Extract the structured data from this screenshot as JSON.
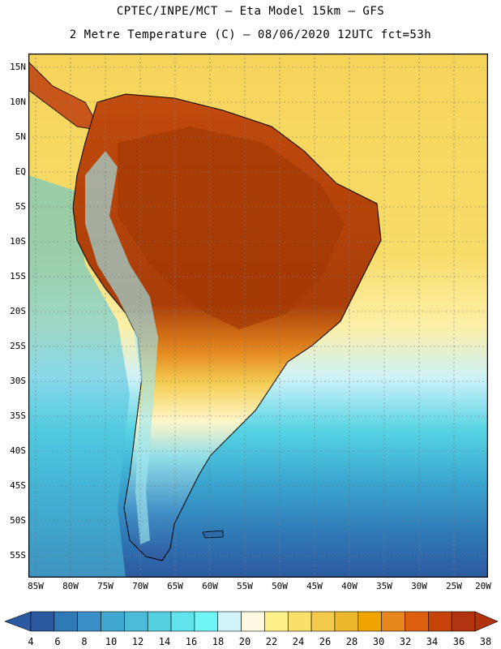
{
  "header": {
    "title_line1": "CPTEC/INPE/MCT –  Eta Model 15km – GFS",
    "title_line2": "2 Metre Temperature (C) – 08/06/2020 12UTC fct=53h"
  },
  "map": {
    "lat_labels": [
      "15N",
      "10N",
      "5N",
      "EQ",
      "5S",
      "10S",
      "15S",
      "20S",
      "25S",
      "30S",
      "35S",
      "40S",
      "45S",
      "50S",
      "55S"
    ],
    "lon_labels": [
      "85W",
      "80W",
      "75W",
      "70W",
      "65W",
      "60W",
      "55W",
      "50W",
      "45W",
      "40W",
      "35W",
      "30W",
      "25W",
      "20W"
    ],
    "ocean_color": "#2a8fc4",
    "land_color": "#a04a0a"
  },
  "colorbar": {
    "labels": [
      "4",
      "6",
      "8",
      "10",
      "12",
      "14",
      "16",
      "18",
      "20",
      "22",
      "24",
      "26",
      "28",
      "30",
      "32",
      "34",
      "36",
      "38"
    ],
    "colors": [
      "#2c5aa0",
      "#2f79b6",
      "#3b8fc8",
      "#40a8d0",
      "#4bbcd8",
      "#55d0e0",
      "#60e3ea",
      "#70f5f5",
      "#d2f3fa",
      "#fff8e0",
      "#fef08a",
      "#f9e06a",
      "#f4ca4a",
      "#eeb82c",
      "#f0a400",
      "#e8861e",
      "#dc6010",
      "#c6430a",
      "#b2340e"
    ]
  }
}
